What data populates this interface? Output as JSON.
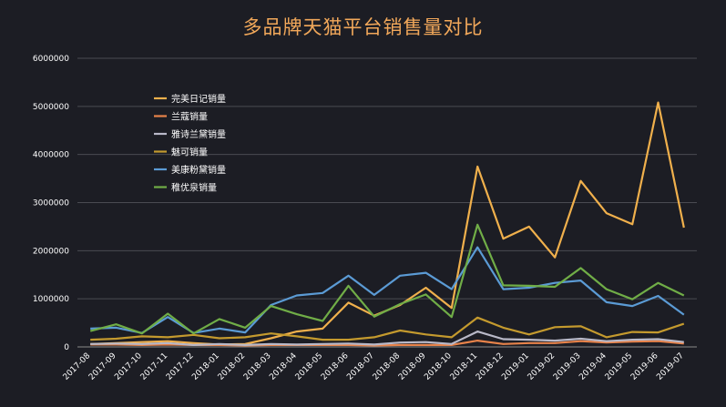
{
  "chart_data": {
    "type": "line",
    "title": "多品牌天猫平台销售量对比",
    "xlabel": "",
    "ylabel": "",
    "ylim": [
      0,
      6000000
    ],
    "yticks": [
      0,
      1000000,
      2000000,
      3000000,
      4000000,
      5000000,
      6000000
    ],
    "grid": true,
    "legend_position": "top-left",
    "categories": [
      "2017-08",
      "2017-09",
      "2017-10",
      "2017-11",
      "2017-12",
      "2018-01",
      "2018-02",
      "2018-03",
      "2018-04",
      "2018-05",
      "2018-06",
      "2018-07",
      "2018-08",
      "2018-09",
      "2018-10",
      "2018-11",
      "2018-12",
      "2019-01",
      "2019-02",
      "2019-03",
      "2019-04",
      "2019-05",
      "2019-06",
      "2019-07"
    ],
    "series": [
      {
        "name": "完美日记销量",
        "color": "#f0b04c",
        "values": [
          60000,
          80000,
          100000,
          120000,
          80000,
          50000,
          60000,
          180000,
          320000,
          380000,
          920000,
          650000,
          870000,
          1230000,
          810000,
          3750000,
          2250000,
          2500000,
          1860000,
          3450000,
          2780000,
          2550000,
          5080000,
          2480000
        ]
      },
      {
        "name": "兰蔻销量",
        "color": "#e8834a",
        "values": [
          50000,
          50000,
          40000,
          50000,
          40000,
          40000,
          30000,
          40000,
          40000,
          40000,
          40000,
          30000,
          40000,
          40000,
          40000,
          130000,
          60000,
          80000,
          80000,
          120000,
          90000,
          110000,
          120000,
          70000
        ]
      },
      {
        "name": "雅诗兰黛销量",
        "color": "#b9b9c8",
        "values": [
          60000,
          70000,
          60000,
          80000,
          40000,
          60000,
          40000,
          60000,
          50000,
          60000,
          70000,
          50000,
          90000,
          100000,
          60000,
          320000,
          160000,
          150000,
          130000,
          170000,
          120000,
          150000,
          160000,
          100000
        ]
      },
      {
        "name": "魅可销量",
        "color": "#c49a2e",
        "values": [
          150000,
          170000,
          220000,
          200000,
          250000,
          180000,
          200000,
          280000,
          220000,
          150000,
          150000,
          200000,
          340000,
          260000,
          200000,
          610000,
          400000,
          260000,
          410000,
          430000,
          200000,
          310000,
          300000,
          480000
        ]
      },
      {
        "name": "美康粉黛销量",
        "color": "#5b9bd5",
        "values": [
          380000,
          400000,
          290000,
          620000,
          290000,
          380000,
          300000,
          870000,
          1070000,
          1120000,
          1480000,
          1080000,
          1480000,
          1540000,
          1200000,
          2070000,
          1200000,
          1230000,
          1330000,
          1380000,
          930000,
          850000,
          1060000,
          670000
        ]
      },
      {
        "name": "稚优泉销量",
        "color": "#70ad47",
        "values": [
          330000,
          470000,
          280000,
          690000,
          280000,
          580000,
          400000,
          850000,
          680000,
          540000,
          1270000,
          630000,
          890000,
          1090000,
          620000,
          2540000,
          1280000,
          1270000,
          1250000,
          1640000,
          1200000,
          990000,
          1330000,
          1070000
        ]
      }
    ]
  }
}
